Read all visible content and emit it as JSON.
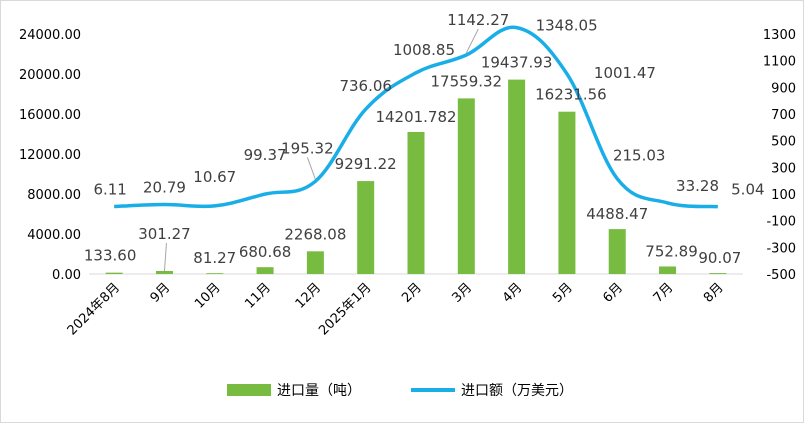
{
  "chart_data": {
    "type": "bar+line",
    "categories": [
      "2024年8月",
      "9月",
      "10月",
      "11月",
      "12月",
      "2025年1月",
      "2月",
      "3月",
      "4月",
      "5月",
      "6月",
      "7月",
      "8月"
    ],
    "series": [
      {
        "name": "进口量（吨）",
        "type": "bar",
        "axis": "left",
        "color": "#77BB41",
        "values": [
          133.6,
          301.27,
          81.27,
          680.68,
          2268.08,
          9291.22,
          14201.782,
          17559.32,
          19437.93,
          16231.56,
          4488.47,
          752.89,
          90.07
        ],
        "labels": [
          "133.60",
          "301.27",
          "81.27",
          "680.68",
          "2268.08",
          "9291.22",
          "14201.782",
          "17559.32",
          "19437.93",
          "16231.56",
          "4488.47",
          "752.89",
          "90.07"
        ]
      },
      {
        "name": "进口额（万美元）",
        "type": "line",
        "axis": "right",
        "color": "#1AAEE8",
        "values": [
          6.11,
          20.79,
          10.67,
          99.37,
          195.32,
          736.06,
          1008.85,
          1142.27,
          1348.05,
          1001.47,
          215.03,
          33.28,
          5.04
        ],
        "labels": [
          "6.11",
          "20.79",
          "10.67",
          "99.37",
          "195.32",
          "736.06",
          "1008.85",
          "1142.27",
          "1348.05",
          "1001.47",
          "215.03",
          "33.28",
          "5.04"
        ]
      }
    ],
    "y_left": {
      "ylim": [
        0,
        24000
      ],
      "ticks": [
        "0.00",
        "4000.00",
        "8000.00",
        "12000.00",
        "16000.00",
        "20000.00",
        "24000.00"
      ]
    },
    "y_right": {
      "ylim": [
        -500,
        1300
      ],
      "ticks": [
        "-500",
        "-300",
        "-100",
        "100",
        "300",
        "500",
        "700",
        "900",
        "1100",
        "1300"
      ]
    },
    "grid": false,
    "legend": "bottom"
  }
}
